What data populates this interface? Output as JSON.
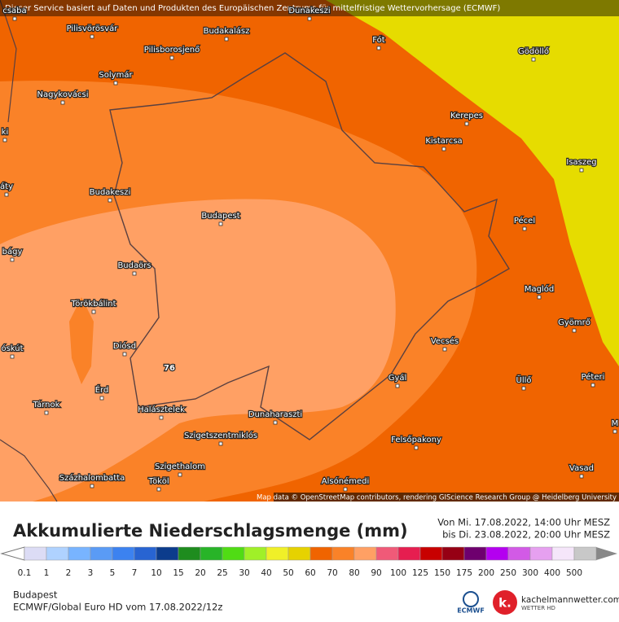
{
  "header_note": "Dieser Service basiert auf Daten und Produkten des Europäischen Zentrums für mittelfristige Wettervorhersage (ECMWF)",
  "map": {
    "places": [
      "csaba",
      "Dunakeszi",
      "Pilisvörösvár",
      "Budakalász",
      "Fót",
      "Gödöllő",
      "Pilisborosjenő",
      "Solymár",
      "Nagykovácsi",
      "Kerepes",
      "ki",
      "Kistarcsa",
      "Isaszeg",
      "áty",
      "Budakeszi",
      "Budapest",
      "Pécel",
      "bágy",
      "Budaörs",
      "Maglód",
      "Törökbálint",
      "Gyömrő",
      "óskút",
      "Diósd",
      "Vecsés",
      "Érd",
      "Gyál",
      "Üllő",
      "Péteri",
      "Tárnok",
      "Halásztelek",
      "Dunaharaszti",
      "M",
      "Szigetszentmiklós",
      "Felsőpakony",
      "Szigethalom",
      "Vasad",
      "Százhalombatta",
      "Tököl",
      "Alsónémedi"
    ],
    "value_label": "76",
    "attribution": "Map data © OpenStreetMap contributors, rendering GIScience Research Group @ Heidelberg University"
  },
  "legend": {
    "title": "Akkumulierte Niederschlagsmenge (mm)",
    "period": [
      "Von Mi. 17.08.2022, 14:00 Uhr MESZ",
      "bis Di. 23.08.2022, 20:00 Uhr MESZ"
    ],
    "scale": [
      {
        "value": 0.1,
        "color": "#dcdcf5"
      },
      {
        "value": 1,
        "color": "#afd2ff"
      },
      {
        "value": 2,
        "color": "#78b4ff"
      },
      {
        "value": 3,
        "color": "#5a9bf5"
      },
      {
        "value": 5,
        "color": "#3c82f0"
      },
      {
        "value": 7,
        "color": "#2864d2"
      },
      {
        "value": 10,
        "color": "#0c3c8c"
      },
      {
        "value": 15,
        "color": "#1e8c1e"
      },
      {
        "value": 20,
        "color": "#28b428"
      },
      {
        "value": 25,
        "color": "#50dc14"
      },
      {
        "value": 30,
        "color": "#a0f028"
      },
      {
        "value": 40,
        "color": "#f0f028"
      },
      {
        "value": 50,
        "color": "#e6d200"
      },
      {
        "value": 60,
        "color": "#f06400"
      },
      {
        "value": 70,
        "color": "#fa8228"
      },
      {
        "value": 80,
        "color": "#ffa064"
      },
      {
        "value": 90,
        "color": "#f05a78"
      },
      {
        "value": 100,
        "color": "#e61e50"
      },
      {
        "value": 125,
        "color": "#c80000"
      },
      {
        "value": 150,
        "color": "#960014"
      },
      {
        "value": 175,
        "color": "#6e006e"
      },
      {
        "value": 200,
        "color": "#b400f0"
      },
      {
        "value": 250,
        "color": "#d25ae6"
      },
      {
        "value": 300,
        "color": "#e6a0f0"
      },
      {
        "value": 400,
        "color": "#f5e6fa"
      },
      {
        "value": 500,
        "color": "#c8c8c8"
      }
    ]
  },
  "footer": {
    "location": "Budapest",
    "model": "ECMWF/Global Euro HD vom  17.08.2022/12z",
    "logos": [
      "ECMWF",
      "kachelmannwetter.com",
      "WETTER HD"
    ]
  }
}
